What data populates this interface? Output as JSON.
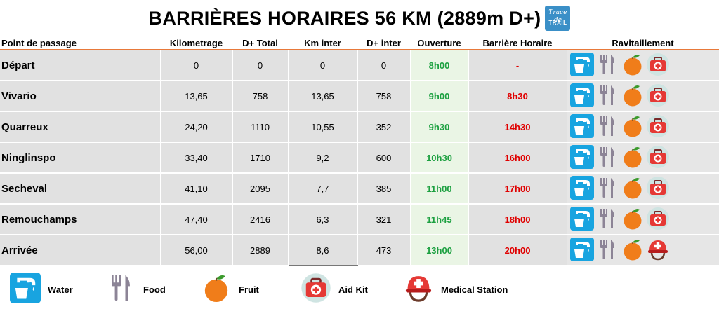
{
  "title": "BARRIÈRES HORAIRES 56 KM (2889m D+)",
  "logo": {
    "line1": "Trace de",
    "line2": "TRAIL"
  },
  "columns": [
    "Point de passage",
    "Kilometrage",
    "D+ Total",
    "Km inter",
    "D+ inter",
    "Ouverture",
    "Barrière Horaire",
    "Ravitaillement"
  ],
  "rows": [
    {
      "name": "Départ",
      "km": "0",
      "dplus": "0",
      "kminter": "0",
      "dinter": "0",
      "ouverture": "8h00",
      "barriere": "-",
      "supplies": [
        "water-icon",
        "food-icon",
        "fruit-icon",
        "aid-kit-icon"
      ]
    },
    {
      "name": "Vivario",
      "km": "13,65",
      "dplus": "758",
      "kminter": "13,65",
      "dinter": "758",
      "ouverture": "9h00",
      "barriere": "8h30",
      "supplies": [
        "water-icon",
        "food-icon",
        "fruit-icon",
        "aid-kit-icon"
      ]
    },
    {
      "name": "Quarreux",
      "km": "24,20",
      "dplus": "1110",
      "kminter": "10,55",
      "dinter": "352",
      "ouverture": "9h30",
      "barriere": "14h30",
      "supplies": [
        "water-icon",
        "food-icon",
        "fruit-icon",
        "aid-kit-icon"
      ]
    },
    {
      "name": "Ninglinspo",
      "km": "33,40",
      "dplus": "1710",
      "kminter": "9,2",
      "dinter": "600",
      "ouverture": "10h30",
      "barriere": "16h00",
      "supplies": [
        "water-icon",
        "food-icon",
        "fruit-icon",
        "aid-kit-icon"
      ]
    },
    {
      "name": "Secheval",
      "km": "41,10",
      "dplus": "2095",
      "kminter": "7,7",
      "dinter": "385",
      "ouverture": "11h00",
      "barriere": "17h00",
      "supplies": [
        "water-icon",
        "food-icon",
        "fruit-icon",
        "aid-kit-icon"
      ]
    },
    {
      "name": "Remouchamps",
      "km": "47,40",
      "dplus": "2416",
      "kminter": "6,3",
      "dinter": "321",
      "ouverture": "11h45",
      "barriere": "18h00",
      "supplies": [
        "water-icon",
        "food-icon",
        "fruit-icon",
        "aid-kit-icon"
      ]
    },
    {
      "name": "Arrivée",
      "km": "56,00",
      "dplus": "2889",
      "kminter": "8,6",
      "dinter": "473",
      "ouverture": "13h00",
      "barriere": "20h00",
      "supplies": [
        "water-icon",
        "food-icon",
        "fruit-icon",
        "medical-station-icon"
      ]
    }
  ],
  "legend": [
    {
      "icon": "water-icon",
      "label": "Water"
    },
    {
      "icon": "food-icon",
      "label": "Food"
    },
    {
      "icon": "fruit-icon",
      "label": "Fruit"
    },
    {
      "icon": "aid-kit-icon",
      "label": "Aid Kit"
    },
    {
      "icon": "medical-station-icon",
      "label": "Medical Station"
    }
  ],
  "colors": {
    "header_rule": "#e8793a",
    "ouverture": "#1ca040",
    "barriere": "#e00000",
    "row_bg": "#e1e1e1",
    "water_bg": "#18a4e0",
    "fruit": "#f07d1a",
    "aid_kit": "#e53935",
    "utensils": "#8c8496"
  }
}
